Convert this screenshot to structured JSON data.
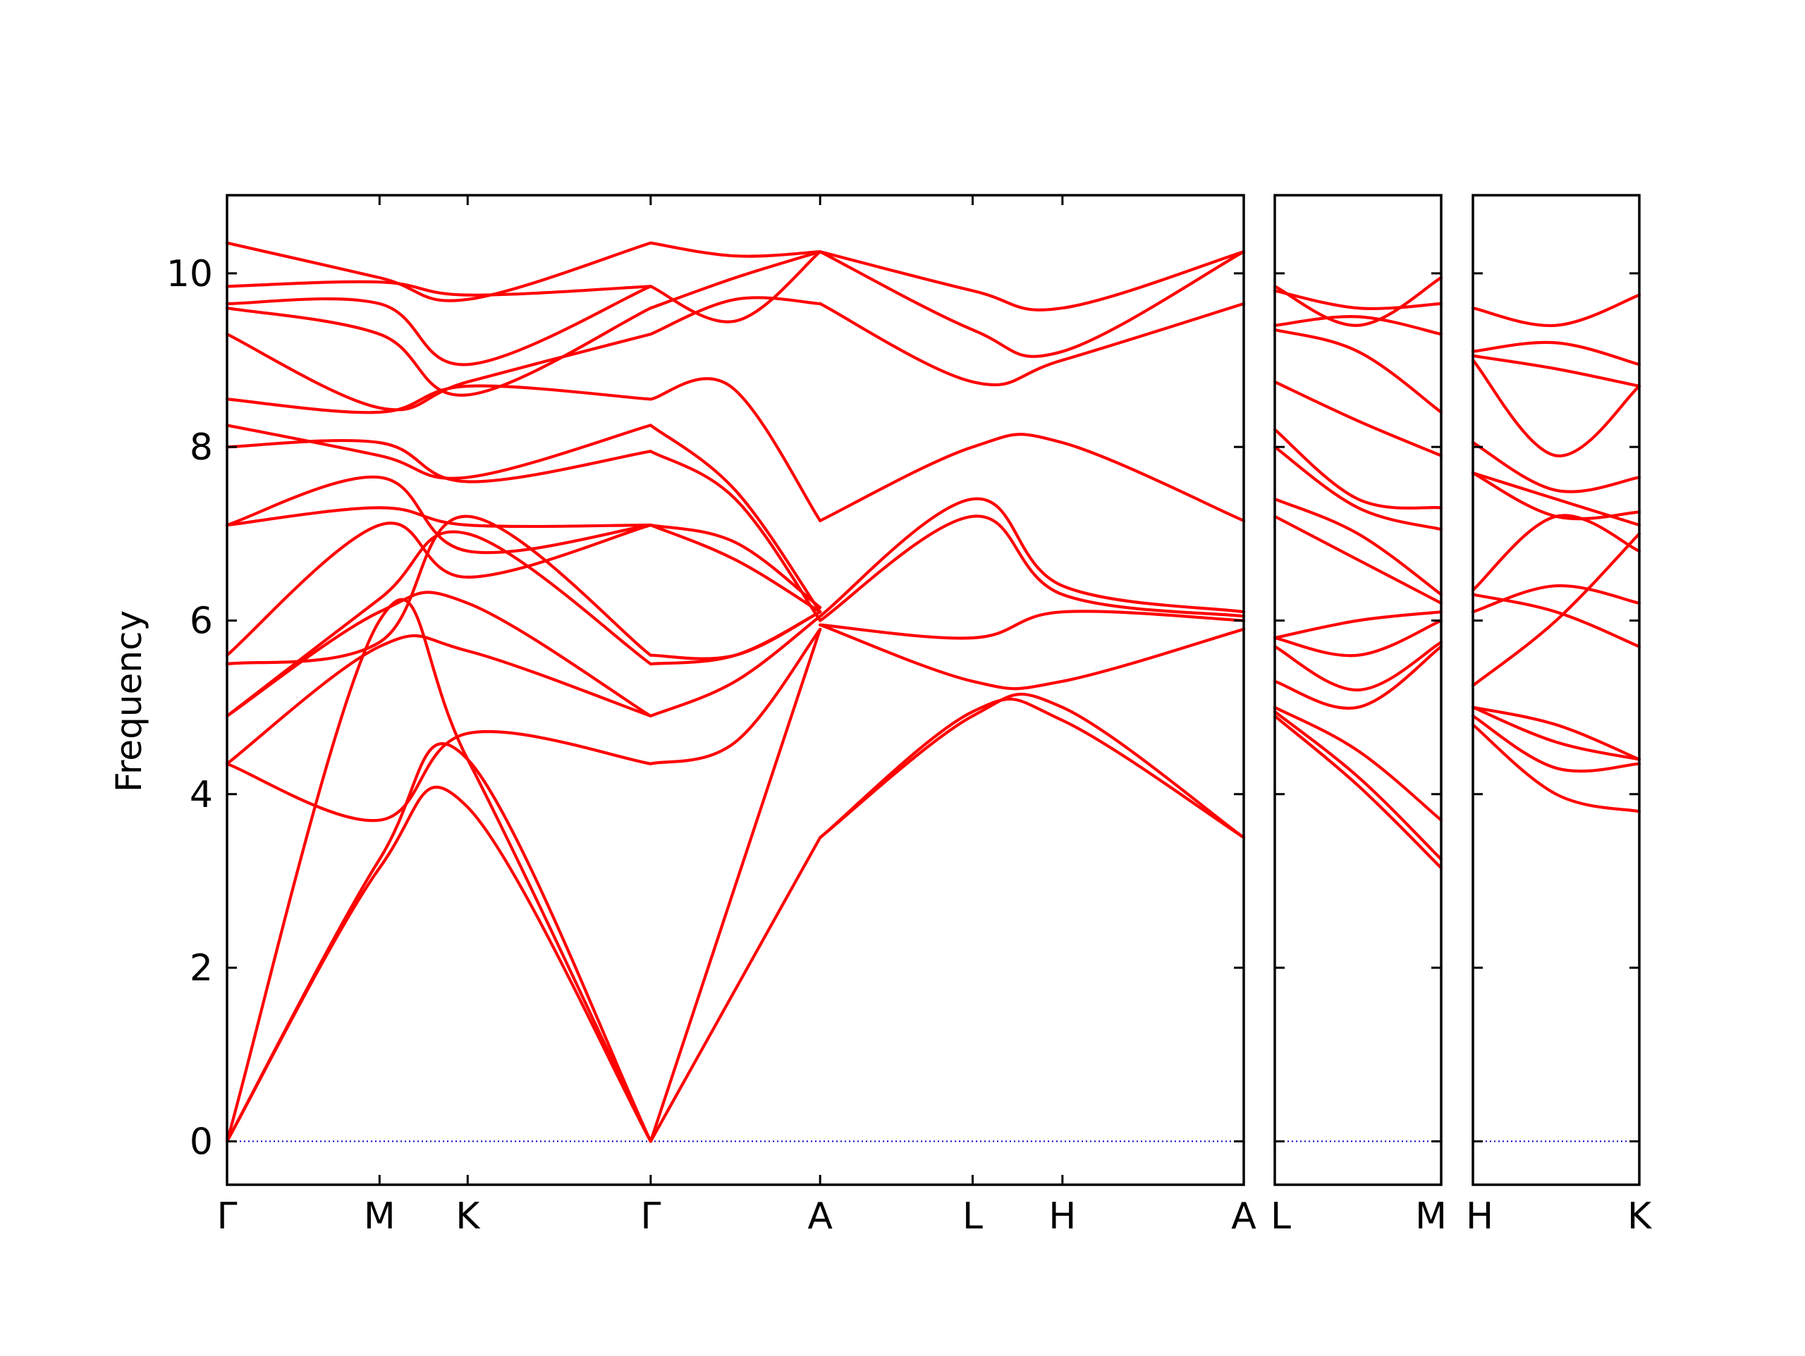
{
  "chart_data": {
    "type": "line",
    "title": "",
    "ylabel": "Frequency",
    "xlabel": "",
    "ylim": [
      -0.5,
      10.9
    ],
    "yticks": [
      "0",
      "2",
      "4",
      "6",
      "8",
      "10"
    ],
    "grid": false,
    "band_color": "#ff0000",
    "zero_line_color": "#0000cc",
    "panels": [
      {
        "x_range": [
          0,
          6.0
        ],
        "labels": [
          {
            "x": 0.0,
            "text": "Γ"
          },
          {
            "x": 0.9,
            "text": "M"
          },
          {
            "x": 1.42,
            "text": "K"
          },
          {
            "x": 2.5,
            "text": "Γ"
          },
          {
            "x": 3.5,
            "text": "A"
          },
          {
            "x": 4.4,
            "text": "L"
          },
          {
            "x": 4.93,
            "text": "H"
          },
          {
            "x": 6.0,
            "text": "A"
          }
        ],
        "bands": [
          {
            "x": [
              0,
              0.9,
              1.42,
              2.5
            ],
            "y": [
              0,
              3.15,
              3.85,
              0
            ]
          },
          {
            "x": [
              0,
              0.9,
              1.42,
              2.5
            ],
            "y": [
              0,
              3.25,
              4.4,
              0
            ]
          },
          {
            "x": [
              0,
              0.9,
              1.42,
              2.5
            ],
            "y": [
              0,
              6.0,
              4.4,
              0
            ]
          },
          {
            "x": [
              2.5,
              3.5
            ],
            "y": [
              0,
              3.5
            ]
          },
          {
            "x": [
              2.5,
              3.5
            ],
            "y": [
              0,
              5.9
            ]
          },
          {
            "x": [
              3.5,
              4.4,
              4.93,
              6.0
            ],
            "y": [
              3.5,
              4.95,
              4.85,
              3.5
            ]
          },
          {
            "x": [
              3.5,
              4.4,
              4.93,
              6.0
            ],
            "y": [
              3.5,
              4.9,
              5.0,
              3.5
            ]
          },
          {
            "x": [
              3.5,
              4.4,
              4.93,
              6.0
            ],
            "y": [
              5.95,
              5.3,
              5.3,
              5.9
            ]
          },
          {
            "x": [
              3.5,
              4.4,
              4.93,
              6.0
            ],
            "y": [
              5.95,
              5.8,
              6.1,
              6.0
            ]
          },
          {
            "x": [
              3.5,
              4.4,
              4.93,
              6.0
            ],
            "y": [
              6.0,
              7.2,
              6.3,
              6.05
            ]
          },
          {
            "x": [
              3.5,
              4.4,
              4.93,
              6.0
            ],
            "y": [
              6.05,
              7.4,
              6.4,
              6.1
            ]
          },
          {
            "x": [
              3.5,
              4.4,
              4.93,
              6.0
            ],
            "y": [
              7.15,
              8.0,
              8.05,
              7.15
            ]
          },
          {
            "x": [
              3.5,
              4.4,
              4.93,
              6.0
            ],
            "y": [
              9.65,
              8.75,
              9.0,
              9.65
            ]
          },
          {
            "x": [
              3.5,
              4.4,
              4.93,
              6.0
            ],
            "y": [
              10.25,
              9.35,
              9.1,
              10.25
            ]
          },
          {
            "x": [
              3.5,
              4.4,
              4.93,
              6.0
            ],
            "y": [
              10.25,
              9.8,
              9.6,
              10.25
            ]
          },
          {
            "x": [
              0,
              0.9,
              1.42,
              2.5
            ],
            "y": [
              4.35,
              3.7,
              4.7,
              4.35
            ]
          },
          {
            "x": [
              0,
              0.9,
              1.42,
              2.5
            ],
            "y": [
              4.35,
              5.7,
              5.65,
              4.9
            ]
          },
          {
            "x": [
              0,
              0.9,
              1.42,
              2.5
            ],
            "y": [
              4.9,
              6.1,
              6.2,
              4.9
            ]
          },
          {
            "x": [
              0,
              0.9,
              1.42,
              2.5
            ],
            "y": [
              4.9,
              6.25,
              7.0,
              5.5
            ]
          },
          {
            "x": [
              0,
              0.9,
              1.42,
              2.5
            ],
            "y": [
              5.5,
              5.75,
              7.2,
              5.6
            ]
          },
          {
            "x": [
              0,
              0.9,
              1.42,
              2.5
            ],
            "y": [
              5.6,
              7.1,
              6.5,
              7.1
            ]
          },
          {
            "x": [
              0,
              0.9,
              1.42,
              2.5
            ],
            "y": [
              7.1,
              7.3,
              7.1,
              7.1
            ]
          },
          {
            "x": [
              0,
              0.9,
              1.42,
              2.5
            ],
            "y": [
              7.1,
              7.65,
              6.8,
              7.1
            ]
          },
          {
            "x": [
              0,
              0.9,
              1.42,
              2.5
            ],
            "y": [
              8.0,
              8.05,
              7.6,
              7.95
            ]
          },
          {
            "x": [
              0,
              0.9,
              1.42,
              2.5
            ],
            "y": [
              8.25,
              7.9,
              7.65,
              8.25
            ]
          },
          {
            "x": [
              0,
              0.9,
              1.42,
              2.5
            ],
            "y": [
              8.55,
              8.4,
              8.7,
              8.55
            ]
          },
          {
            "x": [
              0,
              0.9,
              1.42,
              2.5
            ],
            "y": [
              9.3,
              8.45,
              8.75,
              9.3
            ]
          },
          {
            "x": [
              0,
              0.9,
              1.42,
              2.5
            ],
            "y": [
              9.6,
              9.3,
              8.6,
              9.6
            ]
          },
          {
            "x": [
              0,
              0.9,
              1.42,
              2.5
            ],
            "y": [
              9.65,
              9.65,
              8.95,
              9.85
            ]
          },
          {
            "x": [
              0,
              0.9,
              1.42,
              2.5
            ],
            "y": [
              9.85,
              9.9,
              9.75,
              9.85
            ]
          },
          {
            "x": [
              0,
              0.9,
              1.42,
              2.5
            ],
            "y": [
              10.35,
              9.95,
              9.7,
              10.35
            ]
          },
          {
            "x": [
              2.5,
              3.0,
              3.5
            ],
            "y": [
              4.35,
              4.6,
              5.9
            ]
          },
          {
            "x": [
              2.5,
              3.0,
              3.5
            ],
            "y": [
              4.9,
              5.3,
              6.05
            ]
          },
          {
            "x": [
              2.5,
              3.0,
              3.5
            ],
            "y": [
              5.5,
              5.6,
              6.1
            ]
          },
          {
            "x": [
              2.5,
              3.0,
              3.5
            ],
            "y": [
              5.6,
              5.6,
              6.1
            ]
          },
          {
            "x": [
              2.5,
              3.0,
              3.5
            ],
            "y": [
              7.1,
              6.9,
              6.15
            ]
          },
          {
            "x": [
              2.5,
              3.0,
              3.5
            ],
            "y": [
              7.1,
              6.7,
              6.1
            ]
          },
          {
            "x": [
              2.5,
              3.0,
              3.5
            ],
            "y": [
              7.95,
              7.4,
              6.0
            ]
          },
          {
            "x": [
              2.5,
              3.0,
              3.5
            ],
            "y": [
              8.25,
              7.5,
              6.1
            ]
          },
          {
            "x": [
              2.5,
              2.97,
              3.5
            ],
            "y": [
              8.55,
              8.7,
              7.15
            ]
          },
          {
            "x": [
              2.5,
              3.0,
              3.5
            ],
            "y": [
              9.3,
              9.7,
              9.65
            ]
          },
          {
            "x": [
              2.5,
              3.0,
              3.5
            ],
            "y": [
              9.6,
              9.95,
              10.25
            ]
          },
          {
            "x": [
              2.5,
              3.0,
              3.5
            ],
            "y": [
              9.85,
              9.45,
              10.25
            ]
          },
          {
            "x": [
              2.5,
              3.0,
              3.5
            ],
            "y": [
              10.35,
              10.2,
              10.25
            ]
          }
        ]
      },
      {
        "x_range": [
          0,
          1.0
        ],
        "labels": [
          {
            "x": 0.0,
            "text": "L"
          },
          {
            "x": 1.0,
            "text": "M"
          }
        ],
        "bands": [
          {
            "x": [
              0,
              0.5,
              1.0
            ],
            "y": [
              4.9,
              4.1,
              3.15
            ]
          },
          {
            "x": [
              0,
              0.5,
              1.0
            ],
            "y": [
              4.95,
              4.2,
              3.25
            ]
          },
          {
            "x": [
              0,
              0.5,
              1.0
            ],
            "y": [
              5.0,
              4.5,
              3.7
            ]
          },
          {
            "x": [
              0,
              0.5,
              1.0
            ],
            "y": [
              5.3,
              5.0,
              5.7
            ]
          },
          {
            "x": [
              0,
              0.5,
              1.0
            ],
            "y": [
              5.7,
              5.2,
              5.75
            ]
          },
          {
            "x": [
              0,
              0.5,
              1.0
            ],
            "y": [
              5.8,
              5.6,
              6.0
            ]
          },
          {
            "x": [
              0,
              0.5,
              1.0
            ],
            "y": [
              5.8,
              6.0,
              6.1
            ]
          },
          {
            "x": [
              0,
              0.5,
              1.0
            ],
            "y": [
              7.2,
              6.7,
              6.2
            ]
          },
          {
            "x": [
              0,
              0.5,
              1.0
            ],
            "y": [
              7.4,
              7.0,
              6.3
            ]
          },
          {
            "x": [
              0,
              0.5,
              1.0
            ],
            "y": [
              8.0,
              7.3,
              7.05
            ]
          },
          {
            "x": [
              0,
              0.5,
              1.0
            ],
            "y": [
              8.2,
              7.4,
              7.3
            ]
          },
          {
            "x": [
              0,
              0.5,
              1.0
            ],
            "y": [
              8.75,
              8.3,
              7.9
            ]
          },
          {
            "x": [
              0,
              0.5,
              1.0
            ],
            "y": [
              9.35,
              9.1,
              8.4
            ]
          },
          {
            "x": [
              0,
              0.5,
              1.0
            ],
            "y": [
              9.4,
              9.5,
              9.3
            ]
          },
          {
            "x": [
              0,
              0.5,
              1.0
            ],
            "y": [
              9.8,
              9.6,
              9.65
            ]
          },
          {
            "x": [
              0,
              0.5,
              1.0
            ],
            "y": [
              9.85,
              9.4,
              9.95
            ]
          }
        ]
      },
      {
        "x_range": [
          0,
          1.0
        ],
        "labels": [
          {
            "x": 0.0,
            "text": "H"
          },
          {
            "x": 1.0,
            "text": "K"
          }
        ],
        "bands": [
          {
            "x": [
              0,
              0.5,
              1.0
            ],
            "y": [
              4.8,
              4.0,
              3.8
            ]
          },
          {
            "x": [
              0,
              0.5,
              1.0
            ],
            "y": [
              4.9,
              4.3,
              4.35
            ]
          },
          {
            "x": [
              0,
              0.5,
              1.0
            ],
            "y": [
              5.0,
              4.6,
              4.4
            ]
          },
          {
            "x": [
              0,
              0.5,
              1.0
            ],
            "y": [
              5.0,
              4.8,
              4.4
            ]
          },
          {
            "x": [
              0,
              0.5,
              1.0
            ],
            "y": [
              5.25,
              6.0,
              7.0
            ]
          },
          {
            "x": [
              0,
              0.5,
              1.0
            ],
            "y": [
              6.1,
              6.4,
              6.2
            ]
          },
          {
            "x": [
              0,
              0.5,
              1.0
            ],
            "y": [
              6.3,
              6.1,
              5.7
            ]
          },
          {
            "x": [
              0,
              0.5,
              1.0
            ],
            "y": [
              6.35,
              7.2,
              6.8
            ]
          },
          {
            "x": [
              0,
              0.5,
              1.0
            ],
            "y": [
              7.7,
              7.4,
              7.1
            ]
          },
          {
            "x": [
              0,
              0.5,
              1.0
            ],
            "y": [
              7.7,
              7.2,
              7.25
            ]
          },
          {
            "x": [
              0,
              0.5,
              1.0
            ],
            "y": [
              8.05,
              7.5,
              7.65
            ]
          },
          {
            "x": [
              0,
              0.5,
              1.0
            ],
            "y": [
              9.0,
              7.9,
              8.7
            ]
          },
          {
            "x": [
              0,
              0.5,
              1.0
            ],
            "y": [
              9.05,
              8.9,
              8.7
            ]
          },
          {
            "x": [
              0,
              0.5,
              1.0
            ],
            "y": [
              9.1,
              9.2,
              8.95
            ]
          },
          {
            "x": [
              0,
              0.5,
              1.0
            ],
            "y": [
              9.6,
              9.4,
              9.75
            ]
          }
        ]
      }
    ]
  }
}
